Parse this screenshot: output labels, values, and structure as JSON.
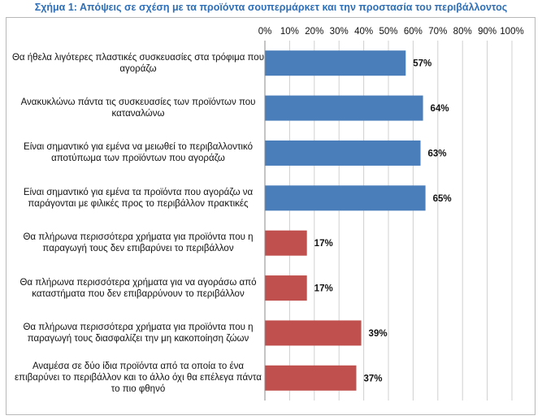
{
  "chart_data": {
    "type": "bar",
    "orientation": "horizontal",
    "title": "Σχήμα 1: Απόψεις σε σχέση με τα προϊόντα σουπερμάρκετ και την προστασία του περιβάλλοντος",
    "categories": [
      "Θα ήθελα λιγότερες πλαστικές συσκευασίες στα τρόφιμα που αγοράζω",
      "Ανακυκλώνω πάντα τις συσκευασίες των προϊόντων που καταναλώνω",
      "Είναι σημαντικό για εμένα να μειωθεί το περιβαλλοντικό αποτύπωμα των προϊόντων που αγοράζω",
      "Είναι σημαντικό για εμένα τα προϊόντα που αγοράζω να παράγονται με φιλικές προς το περιβάλλον πρακτικές",
      "Θα πλήρωνα περισσότερα χρήματα για προϊόντα που η παραγωγή τους δεν επιβαρύνει το περιβάλλον",
      "Θα πλήρωνα περισσότερα χρήματα για να αγοράσω από καταστήματα που δεν επιβαρρύνουν το περιβάλλον",
      "Θα πλήρωνα περισσότερα χρήματα για προϊόντα που η παραγωγή τους διασφαλίζει την μη κακοποίηση ζώων",
      "Αναμέσα σε δύο ίδια προϊόντα από τα οποία το ένα επιβαρύνει το περιβάλλον και το άλλο όχι θα επέλεγα πάντα το πιο φθηνό"
    ],
    "values": [
      57,
      64,
      63,
      65,
      17,
      17,
      39,
      37
    ],
    "value_labels": [
      "57%",
      "64%",
      "63%",
      "65%",
      "17%",
      "17%",
      "39%",
      "37%"
    ],
    "bar_colors": [
      "#4a7ebb",
      "#4a7ebb",
      "#4a7ebb",
      "#4a7ebb",
      "#c0504d",
      "#c0504d",
      "#c0504d",
      "#c0504d"
    ],
    "xlim": [
      0,
      100
    ],
    "xticks": [
      0,
      10,
      20,
      30,
      40,
      50,
      60,
      70,
      80,
      90,
      100
    ],
    "xtick_labels": [
      "0%",
      "10%",
      "20%",
      "30%",
      "40%",
      "50%",
      "60%",
      "70%",
      "80%",
      "90%",
      "100%"
    ],
    "xaxis_position": "top",
    "grid": true,
    "legend": "none"
  }
}
